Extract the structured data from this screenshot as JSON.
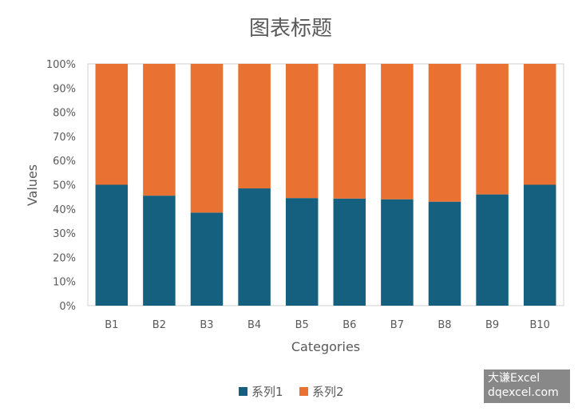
{
  "chart_data": {
    "type": "bar",
    "stacked": "percent",
    "title": "图表标题",
    "xlabel": "Categories",
    "ylabel": "Values",
    "categories": [
      "B1",
      "B2",
      "B3",
      "B4",
      "B5",
      "B6",
      "B7",
      "B8",
      "B9",
      "B10"
    ],
    "series": [
      {
        "name": "系列1",
        "color": "#16607f",
        "values": [
          50,
          45.5,
          38.5,
          48.5,
          44.5,
          44.3,
          44,
          43,
          46,
          50
        ]
      },
      {
        "name": "系列2",
        "color": "#e97132",
        "values": [
          50,
          54.5,
          61.5,
          51.5,
          55.5,
          55.7,
          56,
          57,
          54,
          50
        ]
      }
    ],
    "ylim": [
      0,
      100
    ],
    "yticks": [
      "0%",
      "10%",
      "20%",
      "30%",
      "40%",
      "50%",
      "60%",
      "70%",
      "80%",
      "90%",
      "100%"
    ],
    "grid": false,
    "legend": "bottom"
  },
  "watermark": {
    "line1": "大谦Excel",
    "line2": "dqexcel.com"
  }
}
